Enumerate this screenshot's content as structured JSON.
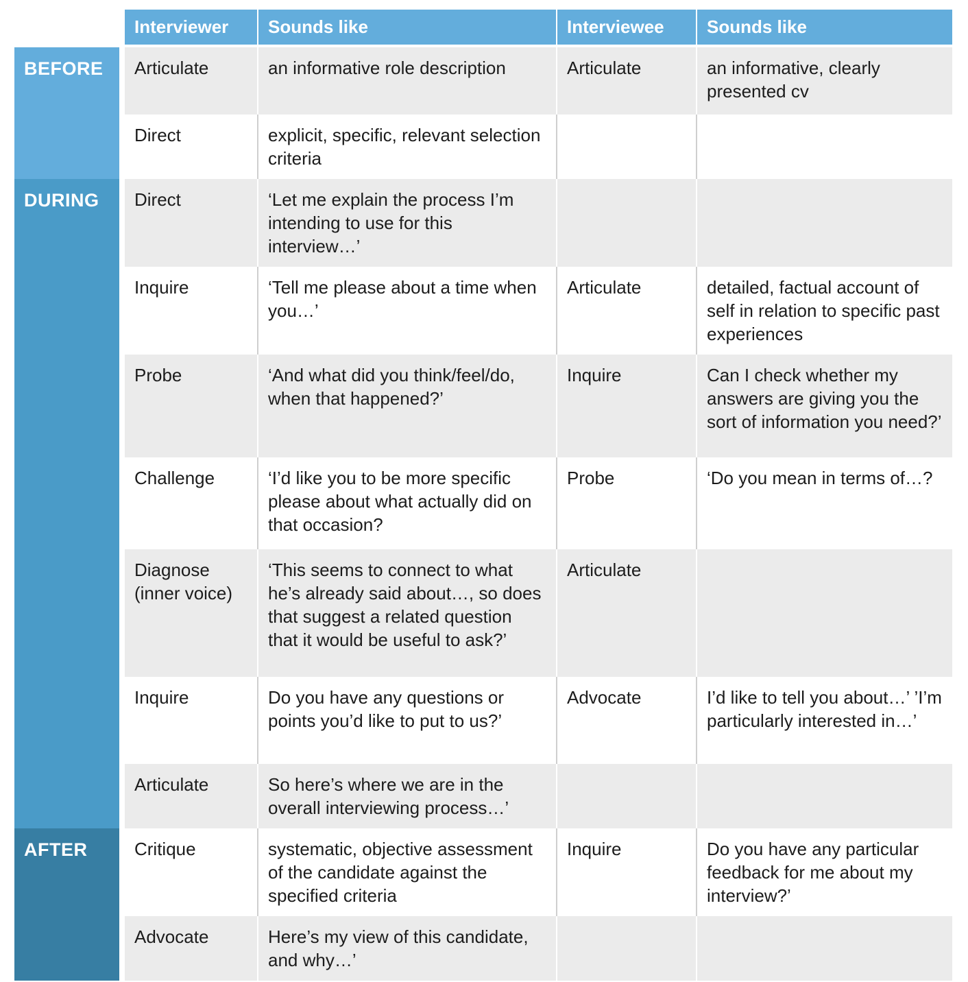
{
  "colors": {
    "header_blue": "#63ADDC",
    "before_blue": "#63ADDC",
    "during_blue": "#4A9BC8",
    "after_blue": "#377EA3",
    "row_grey": "#EBEBEB",
    "row_white": "#FFFFFF",
    "header_text": "#FFFFFF",
    "body_text": "#1C1C1C"
  },
  "table": {
    "headers": [
      "Interviewer",
      "Sounds like",
      "Interviewee",
      "Sounds like"
    ],
    "sections": [
      {
        "label": "BEFORE",
        "rows": [
          {
            "c1": "Articulate",
            "c2": "an informative role description",
            "c3": "Articulate",
            "c4": "an informative, clearly presented cv"
          },
          {
            "c1": "Direct",
            "c2": "explicit, specific, relevant selection criteria",
            "c3": "",
            "c4": ""
          }
        ]
      },
      {
        "label": "DURING",
        "rows": [
          {
            "c1": "Direct",
            "c2": "‘Let me explain the process I’m intending to use for this interview…’",
            "c3": "",
            "c4": ""
          },
          {
            "c1": "Inquire",
            "c2": "‘Tell me please about a time when you…’",
            "c3": "Articulate",
            "c4": "detailed, factual account of self in relation to specific past experiences"
          },
          {
            "c1": "Probe",
            "c2": "‘And what did you think/feel/do, when that happened?’",
            "c3": "Inquire",
            "c4": "Can I check whether my answers are giving you the sort of information you need?’"
          },
          {
            "c1": "Challenge",
            "c2": "‘I’d like you to be more specific please about what actually did on that occasion?",
            "c3": "Probe",
            "c4": "‘Do you mean in terms of…?"
          },
          {
            "c1": "Diagnose (inner voice)",
            "c2": "‘This seems to connect to what he’s already said about…, so does that suggest a related question that it would be useful to ask?’",
            "c3": "Articulate",
            "c4": ""
          },
          {
            "c1": "Inquire",
            "c2": "Do you have any questions or points you’d like to put to us?’",
            "c3": "Advocate",
            "c4": "I’d like to tell you about…’ ’I’m particularly interested in…’"
          },
          {
            "c1": "Articulate",
            "c2": "So here’s where we are in the overall interviewing process…’",
            "c3": "",
            "c4": ""
          }
        ]
      },
      {
        "label": "AFTER",
        "rows": [
          {
            "c1": "Critique",
            "c2": "systematic, objective assessment of the candidate against the specified criteria",
            "c3": "Inquire",
            "c4": "Do you have any particular feedback for me about my interview?’"
          },
          {
            "c1": "Advocate",
            "c2": "Here’s my view of this candidate, and why…’",
            "c3": "",
            "c4": ""
          }
        ]
      }
    ]
  }
}
